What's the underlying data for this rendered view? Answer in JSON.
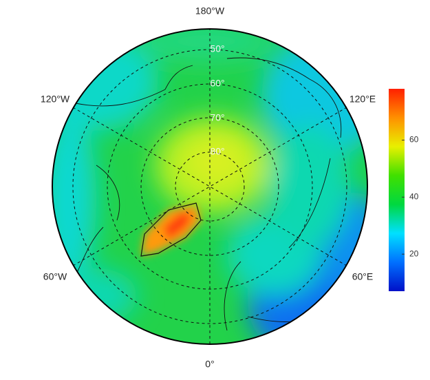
{
  "map": {
    "type": "polar-field",
    "meridian_labels": {
      "top": "180°W",
      "upper_left": "120°W",
      "upper_right": "120°E",
      "lower_left": "60°W",
      "lower_right": "60°E",
      "bottom": "0°"
    },
    "latitude_labels": [
      "50°",
      "60°",
      "70°",
      "80°"
    ],
    "colorbar": {
      "lim": [
        7,
        78
      ],
      "ticks": [
        20,
        40,
        60
      ],
      "colormap": [
        "#0010c8",
        "#0070ff",
        "#00e0ff",
        "#00d840",
        "#40e000",
        "#e8f000",
        "#ff9000",
        "#ff2000"
      ]
    }
  }
}
